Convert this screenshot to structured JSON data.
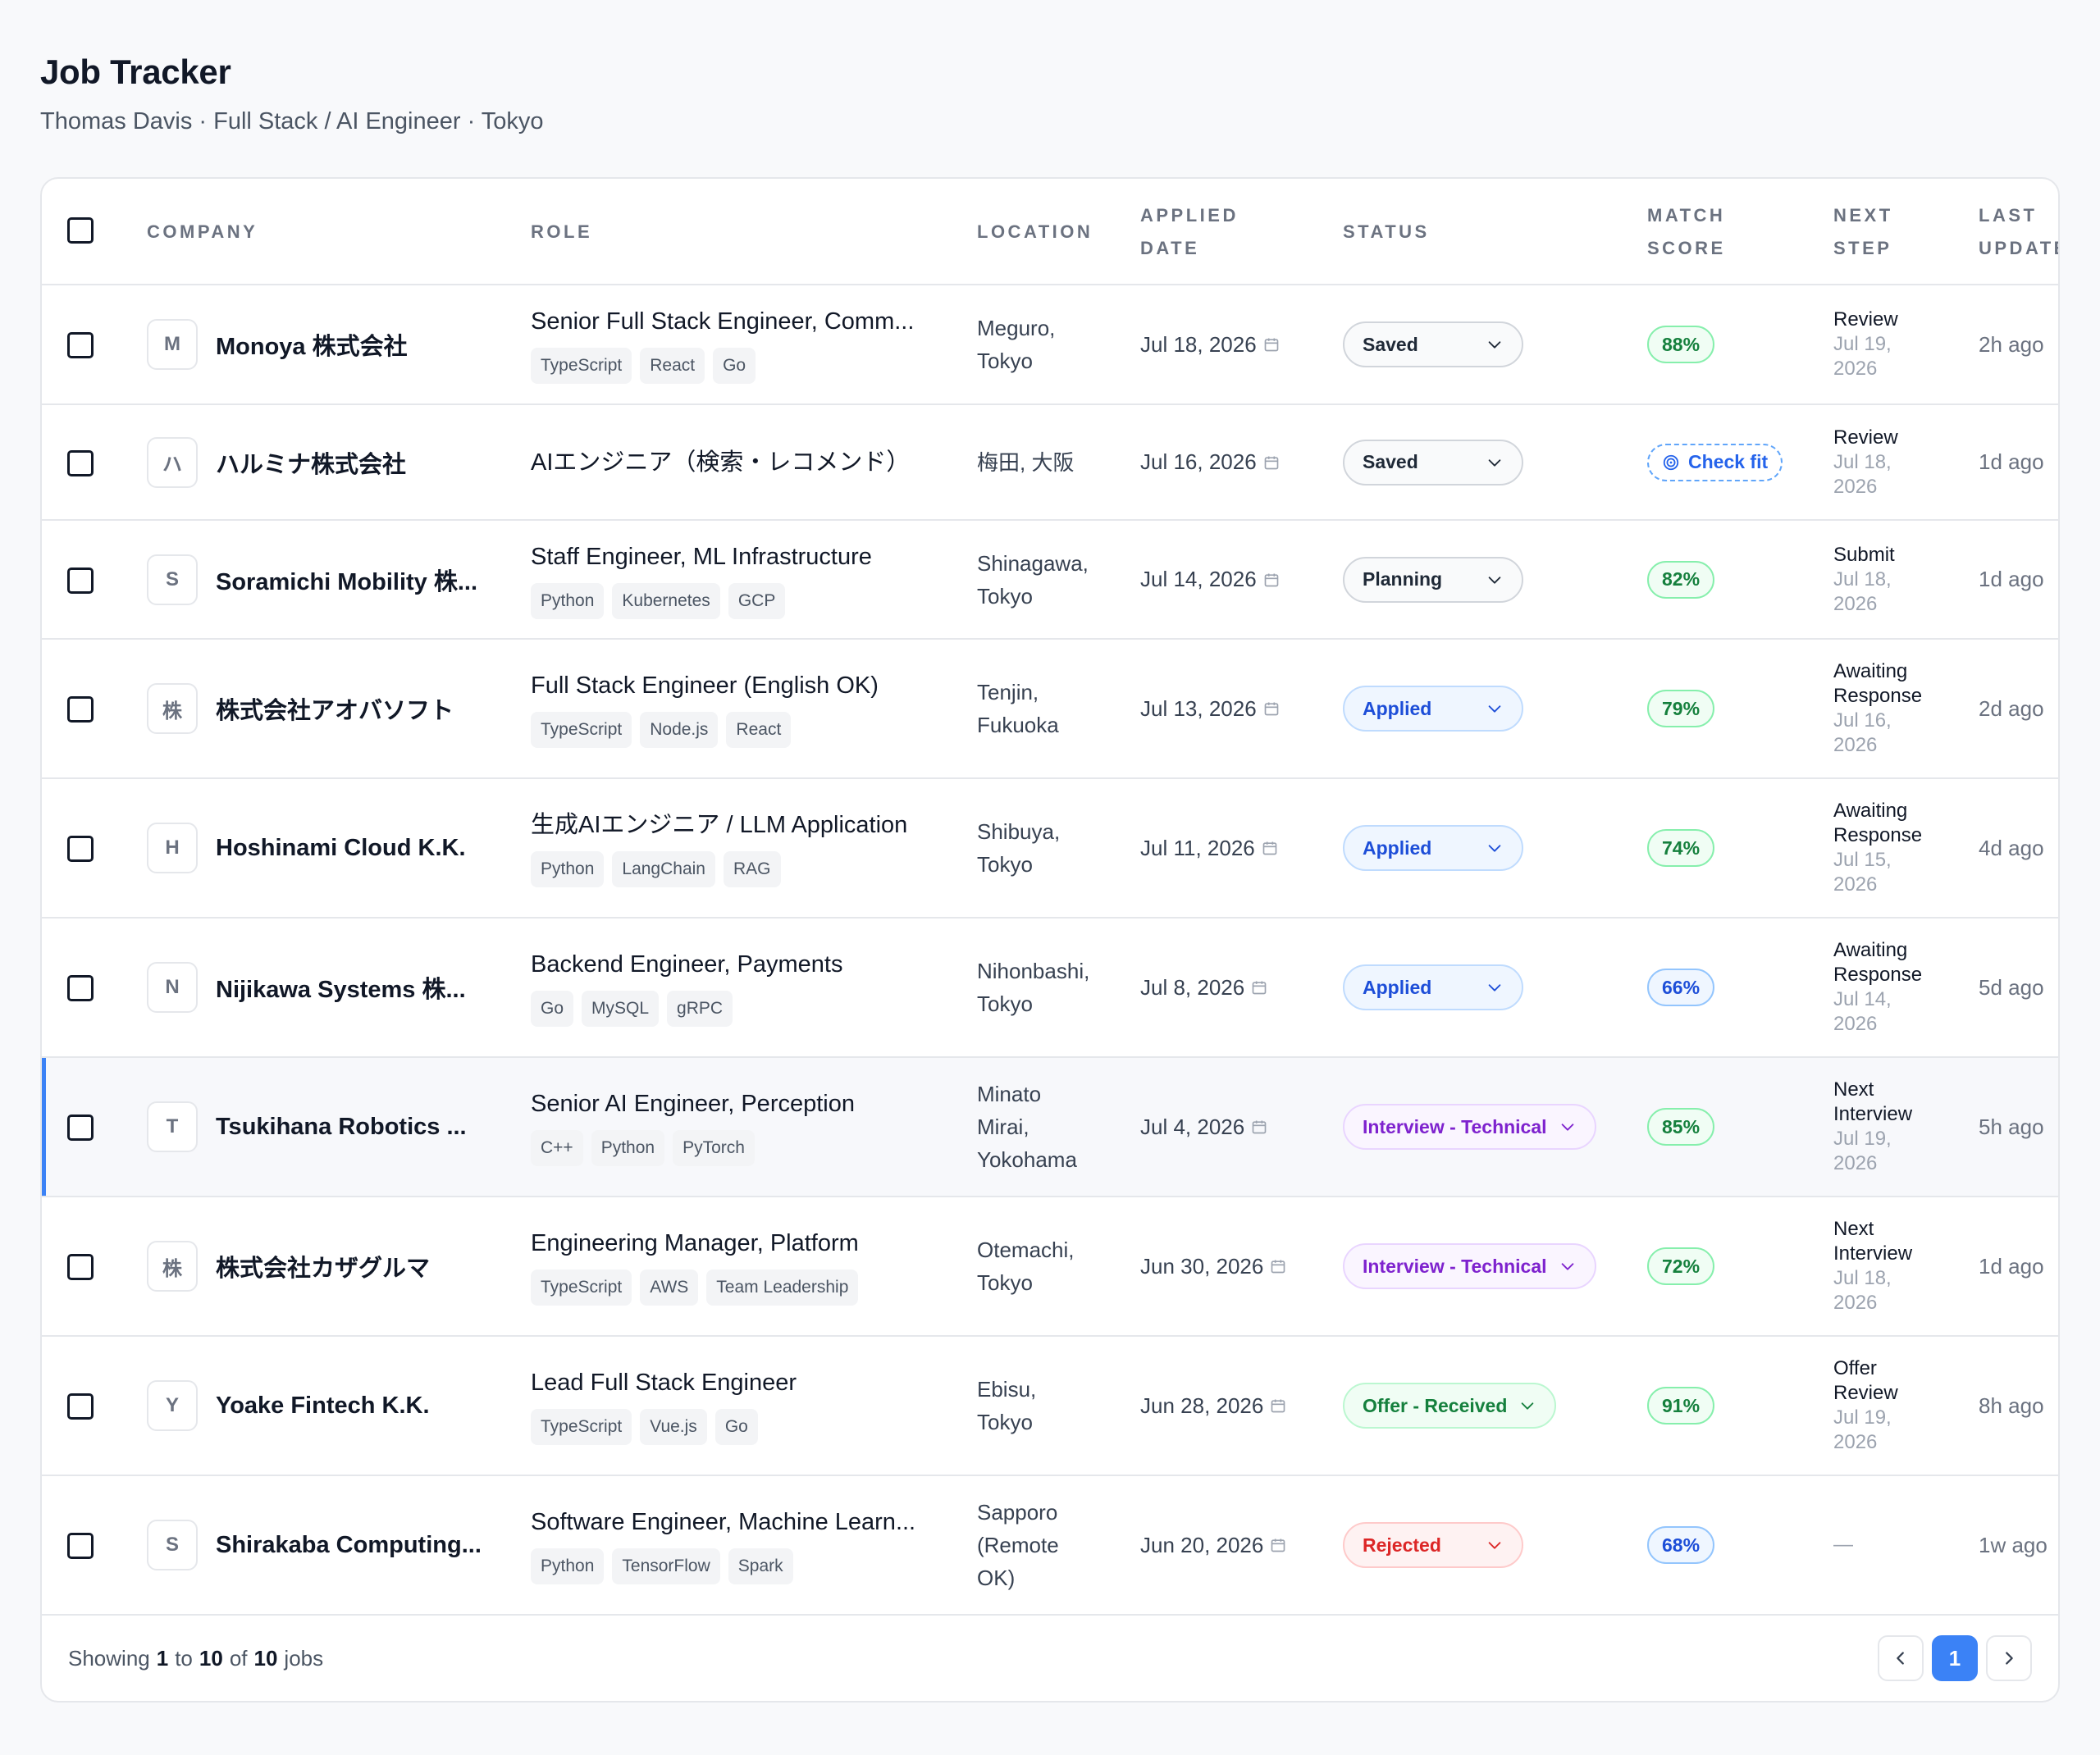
{
  "header": {
    "title": "Job Tracker",
    "subtitle": "Thomas Davis · Full Stack / AI Engineer · Tokyo"
  },
  "columns": {
    "company": "COMPANY",
    "role": "ROLE",
    "location": "LOCATION",
    "applied_date": "APPLIED\nDATE",
    "status": "STATUS",
    "match_score": "MATCH\nSCORE",
    "next_step": "NEXT\nSTEP",
    "last_update": "LAST\nUPDATE"
  },
  "rows": [
    {
      "initial": "M",
      "company": "Monoya 株式会社",
      "role": "Senior Full Stack Engineer, Comm...",
      "tags": [
        "TypeScript",
        "React",
        "Go"
      ],
      "location": "Meguro,\nTokyo",
      "applied": "Jul 18, 2026",
      "status": "Saved",
      "status_kind": "saved",
      "score": "88%",
      "score_kind": "green",
      "next_label": "Review",
      "next_date": "Jul 19,\n2026",
      "updated": "2h ago"
    },
    {
      "initial": "ハ",
      "company": "ハルミナ株式会社",
      "role": "AIエンジニア（検索・レコメンド）",
      "tags": [],
      "location": "梅田, 大阪",
      "applied": "Jul 16, 2026",
      "status": "Saved",
      "status_kind": "saved",
      "score": "Check fit",
      "score_kind": "check",
      "next_label": "Review",
      "next_date": "Jul 18,\n2026",
      "updated": "1d ago"
    },
    {
      "initial": "S",
      "company": "Soramichi Mobility 株...",
      "role": "Staff Engineer, ML Infrastructure",
      "tags": [
        "Python",
        "Kubernetes",
        "GCP"
      ],
      "location": "Shinagawa,\nTokyo",
      "applied": "Jul 14, 2026",
      "status": "Planning",
      "status_kind": "saved",
      "score": "82%",
      "score_kind": "green",
      "next_label": "Submit",
      "next_date": "Jul 18,\n2026",
      "updated": "1d ago"
    },
    {
      "initial": "株",
      "company": "株式会社アオバソフト",
      "role": "Full Stack Engineer (English OK)",
      "tags": [
        "TypeScript",
        "Node.js",
        "React"
      ],
      "location": "Tenjin,\nFukuoka",
      "applied": "Jul 13, 2026",
      "status": "Applied",
      "status_kind": "applied",
      "score": "79%",
      "score_kind": "green",
      "next_label": "Awaiting\nResponse",
      "next_date": "Jul 16,\n2026",
      "updated": "2d ago"
    },
    {
      "initial": "H",
      "company": "Hoshinami Cloud K.K.",
      "role": "生成AIエンジニア / LLM Application",
      "tags": [
        "Python",
        "LangChain",
        "RAG"
      ],
      "location": "Shibuya,\nTokyo",
      "applied": "Jul 11, 2026",
      "status": "Applied",
      "status_kind": "applied",
      "score": "74%",
      "score_kind": "green",
      "next_label": "Awaiting\nResponse",
      "next_date": "Jul 15,\n2026",
      "updated": "4d ago"
    },
    {
      "initial": "N",
      "company": "Nijikawa Systems 株...",
      "role": "Backend Engineer, Payments",
      "tags": [
        "Go",
        "MySQL",
        "gRPC"
      ],
      "location": "Nihonbashi,\nTokyo",
      "applied": "Jul 8, 2026",
      "status": "Applied",
      "status_kind": "applied",
      "score": "66%",
      "score_kind": "blue",
      "next_label": "Awaiting\nResponse",
      "next_date": "Jul 14,\n2026",
      "updated": "5d ago"
    },
    {
      "initial": "T",
      "company": "Tsukihana Robotics ...",
      "role": "Senior AI Engineer, Perception",
      "tags": [
        "C++",
        "Python",
        "PyTorch"
      ],
      "location": "Minato\nMirai,\nYokohama",
      "applied": "Jul 4, 2026",
      "status": "Interview - Technical",
      "status_kind": "interview",
      "score": "85%",
      "score_kind": "green",
      "next_label": "Next\nInterview",
      "next_date": "Jul 19,\n2026",
      "updated": "5h ago"
    },
    {
      "initial": "株",
      "company": "株式会社カザグルマ",
      "role": "Engineering Manager, Platform",
      "tags": [
        "TypeScript",
        "AWS",
        "Team Leadership"
      ],
      "location": "Otemachi,\nTokyo",
      "applied": "Jun 30, 2026",
      "status": "Interview - Technical",
      "status_kind": "interview",
      "score": "72%",
      "score_kind": "green",
      "next_label": "Next\nInterview",
      "next_date": "Jul 18,\n2026",
      "updated": "1d ago"
    },
    {
      "initial": "Y",
      "company": "Yoake Fintech K.K.",
      "role": "Lead Full Stack Engineer",
      "tags": [
        "TypeScript",
        "Vue.js",
        "Go"
      ],
      "location": "Ebisu,\nTokyo",
      "applied": "Jun 28, 2026",
      "status": "Offer - Received",
      "status_kind": "offer",
      "score": "91%",
      "score_kind": "green",
      "next_label": "Offer\nReview",
      "next_date": "Jul 19,\n2026",
      "updated": "8h ago"
    },
    {
      "initial": "S",
      "company": "Shirakaba Computing...",
      "role": "Software Engineer, Machine Learn...",
      "tags": [
        "Python",
        "TensorFlow",
        "Spark"
      ],
      "location": "Sapporo\n(Remote\nOK)",
      "applied": "Jun 20, 2026",
      "status": "Rejected",
      "status_kind": "rejected",
      "score": "68%",
      "score_kind": "blue",
      "next_label": "",
      "next_date": "",
      "next_dash": "—",
      "updated": "1w ago"
    }
  ],
  "footer": {
    "showing_prefix": "Showing",
    "from": "1",
    "to_word": "to",
    "to": "10",
    "of_word": "of",
    "total": "10",
    "suffix": "jobs",
    "current_page": "1"
  },
  "colors": {
    "accent": "#3b82f6",
    "saved": "#1f2937",
    "applied": "#1d4ed8",
    "interview": "#7e22ce",
    "offer": "#15803d",
    "rejected": "#dc2626"
  },
  "icons": {
    "calendar": "calendar-icon",
    "chevron": "chevron-down-icon",
    "check_fit": "target-icon",
    "prev": "chevron-left-icon",
    "next": "chevron-right-icon"
  }
}
